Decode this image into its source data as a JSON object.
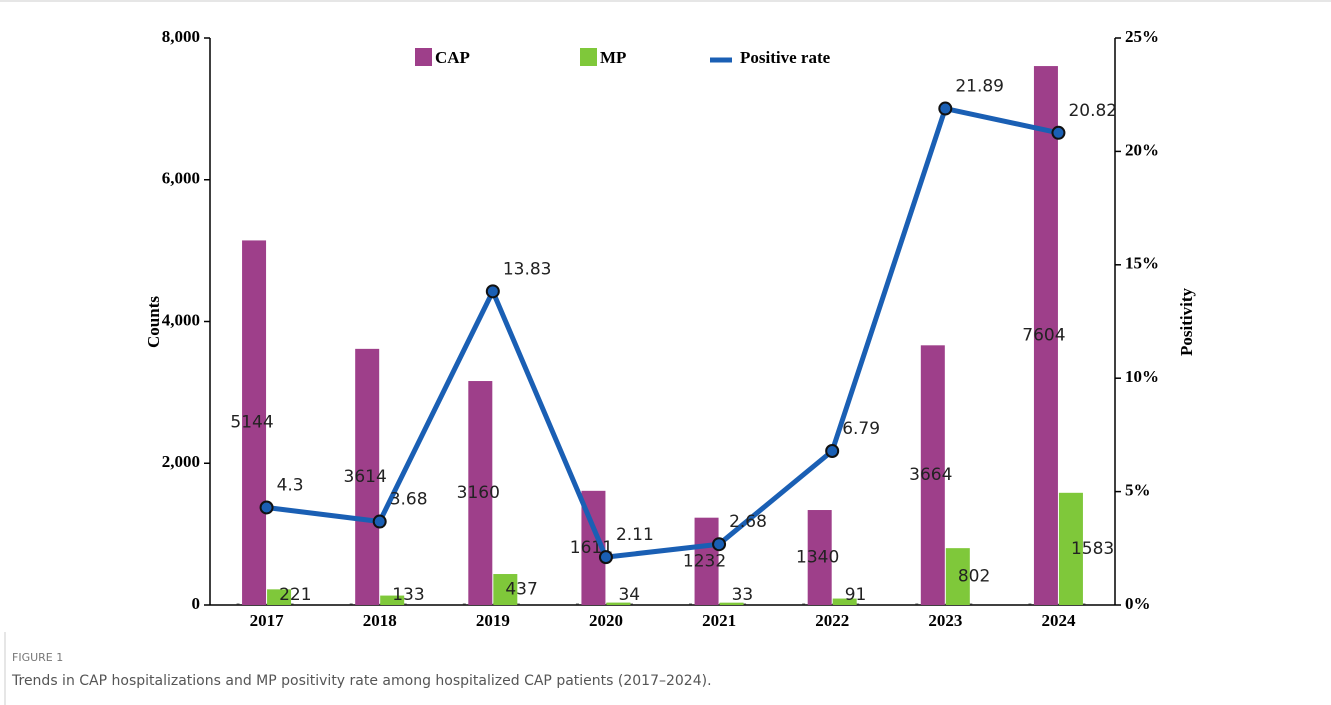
{
  "chart_data": {
    "type": "bar",
    "categories": [
      "2017",
      "2018",
      "2019",
      "2020",
      "2021",
      "2022",
      "2023",
      "2024"
    ],
    "series": [
      {
        "name": "CAP",
        "color": "#9e3f8a",
        "values": [
          5144,
          3614,
          3160,
          1611,
          1232,
          1340,
          3664,
          7604
        ]
      },
      {
        "name": "MP",
        "color": "#7fc83a",
        "values": [
          221,
          133,
          437,
          34,
          33,
          91,
          802,
          1583
        ]
      },
      {
        "name": "Positive rate",
        "type": "line",
        "axis": "y2",
        "color": "#1a5fb4",
        "values": [
          4.3,
          3.68,
          13.83,
          2.11,
          2.68,
          6.79,
          21.89,
          20.82
        ]
      }
    ],
    "ylabel": "Counts",
    "y2label": "Positivity",
    "ylim": [
      0,
      8000
    ],
    "yticks": [
      0,
      {
        "value": 2000,
        "label": "2,000"
      },
      {
        "value": 4000,
        "label": "4,000"
      },
      {
        "value": 6000,
        "label": "6,000"
      },
      {
        "value": 8000,
        "label": "8,000"
      }
    ],
    "y2lim": [
      0,
      25
    ],
    "y2ticks": [
      {
        "value": 0,
        "label": "0%"
      },
      {
        "value": 5,
        "label": "5%"
      },
      {
        "value": 10,
        "label": "10%"
      },
      {
        "value": 15,
        "label": "15%"
      },
      {
        "value": 20,
        "label": "20%"
      },
      {
        "value": 25,
        "label": "25%"
      }
    ],
    "legend": "top",
    "figure_label": "FIGURE 1",
    "caption": "Trends in CAP hospitalizations and MP positivity rate among hospitalized CAP patients (2017–2024)."
  }
}
